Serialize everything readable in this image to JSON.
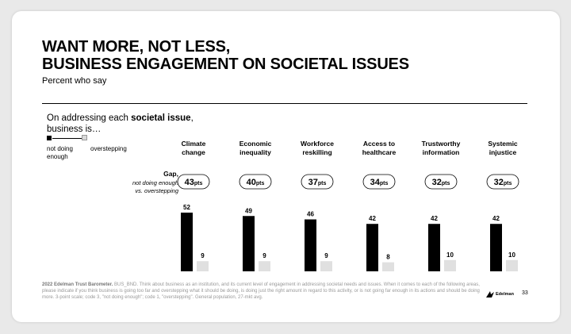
{
  "title_lines": [
    "WANT MORE, NOT LESS,",
    "BUSINESS ENGAGEMENT ON SOCIETAL ISSUES"
  ],
  "subtitle": "Percent who say",
  "question": {
    "prefix": "On addressing each ",
    "bold": "societal issue",
    "suffix": ",",
    "line2": "business is…"
  },
  "legend": {
    "not_doing": "not doing enough",
    "overstepping": "overstepping"
  },
  "gap": {
    "title": "Gap,",
    "subtitle_line1": "not doing enough",
    "subtitle_line2": "vs. overstepping"
  },
  "footer": {
    "bold": "2022 Edelman Trust Barometer.",
    "text": " BUS_BND. Think about business as an institution, and its current level of engagement in addressing societal needs and issues. When it comes to each of the following areas, please indicate if you think business is going too far and overstepping what it should be doing, is doing just the right amount in regard to this activity, or is not going far enough in its actions and should be doing more. 3-point scale; code 3, \"not doing enough\"; code 1, \"overstepping\". General population, 27-mkt avg."
  },
  "brand": "Edelman",
  "page_number": "33",
  "colors": {
    "not_doing_enough": "#000000",
    "overstepping": "#e0e0e0"
  },
  "chart_data": {
    "type": "bar",
    "categories": [
      "Climate change",
      "Economic inequality",
      "Workforce reskilling",
      "Access to healthcare",
      "Trustworthy information",
      "Systemic injustice"
    ],
    "category_lines": [
      [
        "Climate",
        "change"
      ],
      [
        "Economic",
        "inequality"
      ],
      [
        "Workforce",
        "reskilling"
      ],
      [
        "Access to",
        "healthcare"
      ],
      [
        "Trustworthy",
        "information"
      ],
      [
        "Systemic",
        "injustice"
      ]
    ],
    "series": [
      {
        "name": "not doing enough",
        "values": [
          52,
          49,
          46,
          42,
          42,
          42
        ]
      },
      {
        "name": "overstepping",
        "values": [
          9,
          9,
          9,
          8,
          10,
          10
        ]
      }
    ],
    "gap_values": [
      43,
      40,
      37,
      34,
      32,
      32
    ],
    "gap_unit": "pts",
    "ylim": [
      0,
      52
    ]
  }
}
